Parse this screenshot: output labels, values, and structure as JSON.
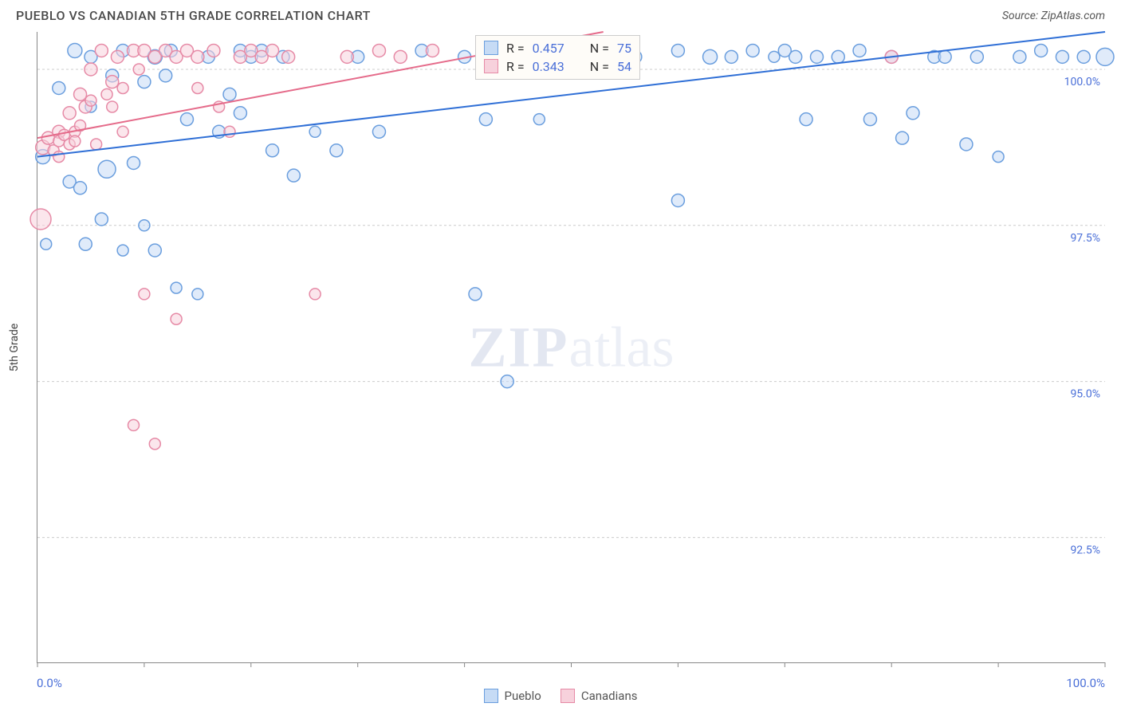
{
  "title": "PUEBLO VS CANADIAN 5TH GRADE CORRELATION CHART",
  "source_label": "Source: ZipAtlas.com",
  "ylabel": "5th Grade",
  "watermark": {
    "bold": "ZIP",
    "light": "atlas"
  },
  "chart": {
    "type": "scatter",
    "background_color": "#ffffff",
    "grid_color": "#cccccc",
    "axis_color": "#888888",
    "tick_label_color": "#4a6fd8",
    "marker_stroke_width": 1.5,
    "marker_opacity": 0.55,
    "marker_radius_min": 7,
    "marker_radius_max": 13,
    "xlim": [
      0,
      100
    ],
    "ylim": [
      90.5,
      100.6
    ],
    "x_min_label": "0.0%",
    "x_max_label": "100.0%",
    "x_ticks": [
      0,
      10,
      20,
      30,
      40,
      50,
      60,
      70,
      80,
      90,
      100
    ],
    "y_ticks": [
      {
        "value": 100.0,
        "label": "100.0%"
      },
      {
        "value": 97.5,
        "label": "97.5%"
      },
      {
        "value": 95.0,
        "label": "95.0%"
      },
      {
        "value": 92.5,
        "label": "92.5%"
      }
    ],
    "series": [
      {
        "name": "Pueblo",
        "color_fill": "#c6dbf5",
        "color_stroke": "#6a9ede",
        "r_label": "R = ",
        "r_value": "0.457",
        "n_label": "N = ",
        "n_value": "75",
        "regression": {
          "x1": 0,
          "y1": 98.6,
          "x2": 100,
          "y2": 100.6,
          "line_color": "#2f6fd6",
          "line_width": 2
        },
        "points": [
          {
            "x": 0.5,
            "y": 98.6,
            "r": 9
          },
          {
            "x": 0.8,
            "y": 97.2,
            "r": 7
          },
          {
            "x": 2,
            "y": 99.7,
            "r": 8
          },
          {
            "x": 3,
            "y": 98.2,
            "r": 8
          },
          {
            "x": 3.5,
            "y": 100.3,
            "r": 9
          },
          {
            "x": 4,
            "y": 98.1,
            "r": 8
          },
          {
            "x": 4.5,
            "y": 97.2,
            "r": 8
          },
          {
            "x": 5,
            "y": 100.2,
            "r": 8
          },
          {
            "x": 5,
            "y": 99.4,
            "r": 7
          },
          {
            "x": 6,
            "y": 97.6,
            "r": 8
          },
          {
            "x": 6.5,
            "y": 98.4,
            "r": 11
          },
          {
            "x": 7,
            "y": 99.9,
            "r": 8
          },
          {
            "x": 8,
            "y": 100.3,
            "r": 8
          },
          {
            "x": 8,
            "y": 97.1,
            "r": 7
          },
          {
            "x": 9,
            "y": 98.5,
            "r": 8
          },
          {
            "x": 10,
            "y": 99.8,
            "r": 8
          },
          {
            "x": 10,
            "y": 97.5,
            "r": 7
          },
          {
            "x": 11,
            "y": 100.2,
            "r": 9
          },
          {
            "x": 11,
            "y": 97.1,
            "r": 8
          },
          {
            "x": 12,
            "y": 99.9,
            "r": 8
          },
          {
            "x": 12.5,
            "y": 100.3,
            "r": 8
          },
          {
            "x": 13,
            "y": 96.5,
            "r": 7
          },
          {
            "x": 14,
            "y": 99.2,
            "r": 8
          },
          {
            "x": 15,
            "y": 96.4,
            "r": 7
          },
          {
            "x": 16,
            "y": 100.2,
            "r": 8
          },
          {
            "x": 17,
            "y": 99.0,
            "r": 8
          },
          {
            "x": 18,
            "y": 99.6,
            "r": 8
          },
          {
            "x": 19,
            "y": 100.3,
            "r": 8
          },
          {
            "x": 19,
            "y": 99.3,
            "r": 8
          },
          {
            "x": 20,
            "y": 100.2,
            "r": 8
          },
          {
            "x": 21,
            "y": 100.3,
            "r": 8
          },
          {
            "x": 22,
            "y": 98.7,
            "r": 8
          },
          {
            "x": 23,
            "y": 100.2,
            "r": 8
          },
          {
            "x": 24,
            "y": 98.3,
            "r": 8
          },
          {
            "x": 26,
            "y": 99.0,
            "r": 7
          },
          {
            "x": 28,
            "y": 98.7,
            "r": 8
          },
          {
            "x": 30,
            "y": 100.2,
            "r": 8
          },
          {
            "x": 32,
            "y": 99.0,
            "r": 8
          },
          {
            "x": 36,
            "y": 100.3,
            "r": 8
          },
          {
            "x": 40,
            "y": 100.2,
            "r": 8
          },
          {
            "x": 41,
            "y": 96.4,
            "r": 8
          },
          {
            "x": 42,
            "y": 99.2,
            "r": 8
          },
          {
            "x": 44,
            "y": 95.0,
            "r": 8
          },
          {
            "x": 45,
            "y": 100.2,
            "r": 8
          },
          {
            "x": 47,
            "y": 99.2,
            "r": 7
          },
          {
            "x": 50,
            "y": 100.2,
            "r": 8
          },
          {
            "x": 52,
            "y": 100.3,
            "r": 8
          },
          {
            "x": 54,
            "y": 100.2,
            "r": 8
          },
          {
            "x": 56,
            "y": 100.2,
            "r": 8
          },
          {
            "x": 60,
            "y": 100.3,
            "r": 8
          },
          {
            "x": 60,
            "y": 97.9,
            "r": 8
          },
          {
            "x": 63,
            "y": 100.2,
            "r": 9
          },
          {
            "x": 65,
            "y": 100.2,
            "r": 8
          },
          {
            "x": 67,
            "y": 100.3,
            "r": 8
          },
          {
            "x": 69,
            "y": 100.2,
            "r": 7
          },
          {
            "x": 70,
            "y": 100.3,
            "r": 8
          },
          {
            "x": 71,
            "y": 100.2,
            "r": 8
          },
          {
            "x": 72,
            "y": 99.2,
            "r": 8
          },
          {
            "x": 73,
            "y": 100.2,
            "r": 8
          },
          {
            "x": 75,
            "y": 100.2,
            "r": 8
          },
          {
            "x": 77,
            "y": 100.3,
            "r": 8
          },
          {
            "x": 78,
            "y": 99.2,
            "r": 8
          },
          {
            "x": 80,
            "y": 100.2,
            "r": 8
          },
          {
            "x": 81,
            "y": 98.9,
            "r": 8
          },
          {
            "x": 82,
            "y": 99.3,
            "r": 8
          },
          {
            "x": 84,
            "y": 100.2,
            "r": 8
          },
          {
            "x": 85,
            "y": 100.2,
            "r": 8
          },
          {
            "x": 87,
            "y": 98.8,
            "r": 8
          },
          {
            "x": 88,
            "y": 100.2,
            "r": 8
          },
          {
            "x": 90,
            "y": 98.6,
            "r": 7
          },
          {
            "x": 92,
            "y": 100.2,
            "r": 8
          },
          {
            "x": 94,
            "y": 100.3,
            "r": 8
          },
          {
            "x": 96,
            "y": 100.2,
            "r": 8
          },
          {
            "x": 98,
            "y": 100.2,
            "r": 8
          },
          {
            "x": 100,
            "y": 100.2,
            "r": 11
          }
        ]
      },
      {
        "name": "Canadians",
        "color_fill": "#f7d1dc",
        "color_stroke": "#e68aa6",
        "r_label": "R = ",
        "r_value": "0.343",
        "n_label": "N = ",
        "n_value": "54",
        "regression": {
          "x1": 0,
          "y1": 98.9,
          "x2": 53,
          "y2": 100.6,
          "line_color": "#e56b8a",
          "line_width": 2
        },
        "points": [
          {
            "x": 0.3,
            "y": 97.6,
            "r": 13
          },
          {
            "x": 0.5,
            "y": 98.75,
            "r": 9
          },
          {
            "x": 1,
            "y": 98.9,
            "r": 8
          },
          {
            "x": 1.5,
            "y": 98.7,
            "r": 7
          },
          {
            "x": 2,
            "y": 99.0,
            "r": 8
          },
          {
            "x": 2,
            "y": 98.6,
            "r": 7
          },
          {
            "x": 2,
            "y": 98.85,
            "r": 7
          },
          {
            "x": 2.5,
            "y": 98.95,
            "r": 7
          },
          {
            "x": 3,
            "y": 99.3,
            "r": 8
          },
          {
            "x": 3,
            "y": 98.8,
            "r": 7
          },
          {
            "x": 3.5,
            "y": 99.0,
            "r": 7
          },
          {
            "x": 3.5,
            "y": 98.85,
            "r": 7
          },
          {
            "x": 4,
            "y": 99.6,
            "r": 8
          },
          {
            "x": 4,
            "y": 99.1,
            "r": 7
          },
          {
            "x": 4.5,
            "y": 99.4,
            "r": 8
          },
          {
            "x": 5,
            "y": 100.0,
            "r": 8
          },
          {
            "x": 5,
            "y": 99.5,
            "r": 7
          },
          {
            "x": 5.5,
            "y": 98.8,
            "r": 7
          },
          {
            "x": 6,
            "y": 100.3,
            "r": 8
          },
          {
            "x": 6.5,
            "y": 99.6,
            "r": 7
          },
          {
            "x": 7,
            "y": 99.8,
            "r": 8
          },
          {
            "x": 7,
            "y": 99.4,
            "r": 7
          },
          {
            "x": 7.5,
            "y": 100.2,
            "r": 8
          },
          {
            "x": 8,
            "y": 99.0,
            "r": 7
          },
          {
            "x": 8,
            "y": 99.7,
            "r": 7
          },
          {
            "x": 9,
            "y": 94.3,
            "r": 7
          },
          {
            "x": 9,
            "y": 100.3,
            "r": 8
          },
          {
            "x": 9.5,
            "y": 100.0,
            "r": 7
          },
          {
            "x": 10,
            "y": 100.3,
            "r": 8
          },
          {
            "x": 10,
            "y": 96.4,
            "r": 7
          },
          {
            "x": 11,
            "y": 100.2,
            "r": 8
          },
          {
            "x": 11,
            "y": 94.0,
            "r": 7
          },
          {
            "x": 12,
            "y": 100.3,
            "r": 8
          },
          {
            "x": 13,
            "y": 100.2,
            "r": 8
          },
          {
            "x": 13,
            "y": 96.0,
            "r": 7
          },
          {
            "x": 14,
            "y": 100.3,
            "r": 8
          },
          {
            "x": 15,
            "y": 100.2,
            "r": 8
          },
          {
            "x": 15,
            "y": 99.7,
            "r": 7
          },
          {
            "x": 16.5,
            "y": 100.3,
            "r": 8
          },
          {
            "x": 17,
            "y": 99.4,
            "r": 7
          },
          {
            "x": 18,
            "y": 99.0,
            "r": 7
          },
          {
            "x": 19,
            "y": 100.2,
            "r": 8
          },
          {
            "x": 20,
            "y": 100.3,
            "r": 8
          },
          {
            "x": 21,
            "y": 100.2,
            "r": 8
          },
          {
            "x": 22,
            "y": 100.3,
            "r": 8
          },
          {
            "x": 23.5,
            "y": 100.2,
            "r": 8
          },
          {
            "x": 26,
            "y": 96.4,
            "r": 7
          },
          {
            "x": 29,
            "y": 100.2,
            "r": 8
          },
          {
            "x": 32,
            "y": 100.3,
            "r": 8
          },
          {
            "x": 34,
            "y": 100.2,
            "r": 8
          },
          {
            "x": 37,
            "y": 100.3,
            "r": 8
          },
          {
            "x": 45,
            "y": 100.2,
            "r": 8
          },
          {
            "x": 53,
            "y": 100.3,
            "r": 8
          },
          {
            "x": 80,
            "y": 100.2,
            "r": 8
          }
        ]
      }
    ]
  },
  "legend": {
    "items": [
      {
        "label": "Pueblo",
        "fill": "#c6dbf5",
        "stroke": "#6a9ede"
      },
      {
        "label": "Canadians",
        "fill": "#f7d1dc",
        "stroke": "#e68aa6"
      }
    ]
  },
  "stats_box": {
    "left_pct": 41,
    "top_pct": 0.5
  }
}
